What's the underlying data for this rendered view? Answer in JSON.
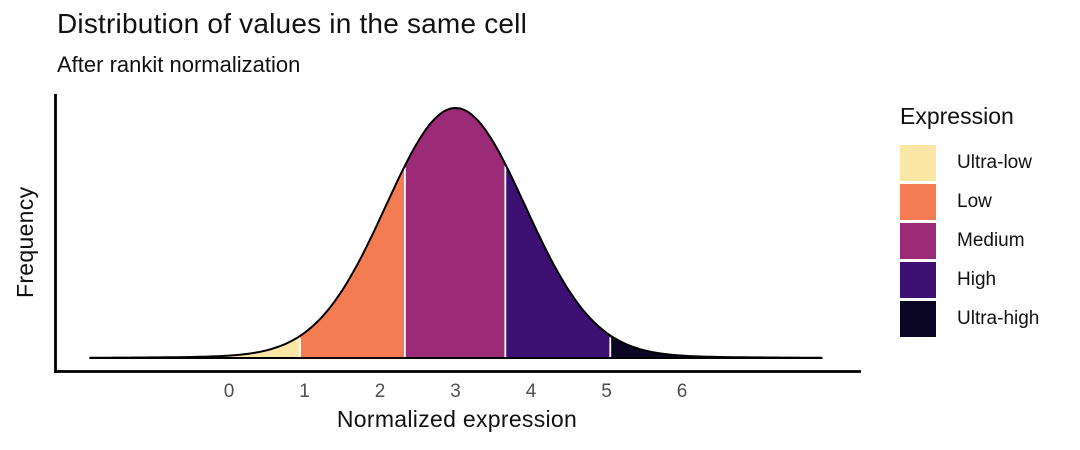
{
  "chart_data": {
    "type": "area",
    "title": "Distribution of values in the same cell",
    "subtitle": "After rankit normalization",
    "xlabel": "Normalized expression",
    "ylabel": "Frequency",
    "x_ticks": [
      0,
      1,
      2,
      3,
      4,
      5,
      6
    ],
    "x_axis_range": [
      -2.3,
      8.4
    ],
    "grid": "off",
    "legend": {
      "title": "Expression",
      "position": "right"
    },
    "curve": {
      "kind": "density",
      "mean": 3,
      "sd": 0.92,
      "tail_sd": 2.2,
      "tail_weight": 0.012,
      "support": [
        -1.84,
        7.85
      ],
      "peak_x": 3
    },
    "regions": [
      {
        "label": "Ultra-low",
        "from": -1.84,
        "to": 0.94,
        "color": "#FAE6A5"
      },
      {
        "label": "Low",
        "from": 0.94,
        "to": 2.33,
        "color": "#F47C52"
      },
      {
        "label": "Medium",
        "from": 2.33,
        "to": 3.66,
        "color": "#9B2A77"
      },
      {
        "label": "High",
        "from": 3.66,
        "to": 5.05,
        "color": "#3D1173"
      },
      {
        "label": "Ultra-high",
        "from": 5.05,
        "to": 7.85,
        "color": "#0B0624"
      }
    ],
    "style": {
      "curve_color": "#000000",
      "axis_color": "#000000",
      "tick_label_color": "#4d4d4d",
      "separator_color": "#FFFFFF",
      "background": "#FFFFFF"
    }
  }
}
